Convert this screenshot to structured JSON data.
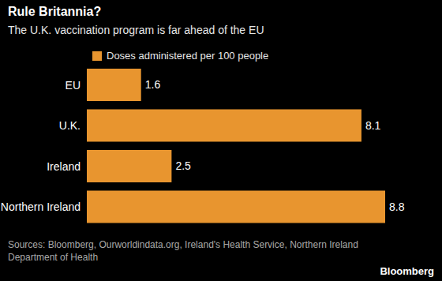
{
  "chart_data": {
    "type": "bar",
    "orientation": "horizontal",
    "title": "Rule Britannia?",
    "subtitle": "The U.K. vaccination program is far ahead of the EU",
    "categories": [
      "EU",
      "U.K.",
      "Ireland",
      "Northern Ireland"
    ],
    "series": [
      {
        "name": "Doses administered per 100 people",
        "color": "#e8952f",
        "values": [
          1.6,
          8.1,
          2.5,
          8.8
        ]
      }
    ],
    "data_labels": true,
    "tick_labels": "y",
    "legend": "top-left",
    "source": "Sources: Bloomberg, Ourworldindata.org, Ireland's Health Service, Northern Ireland Department of Health",
    "credit": "Bloomberg"
  }
}
